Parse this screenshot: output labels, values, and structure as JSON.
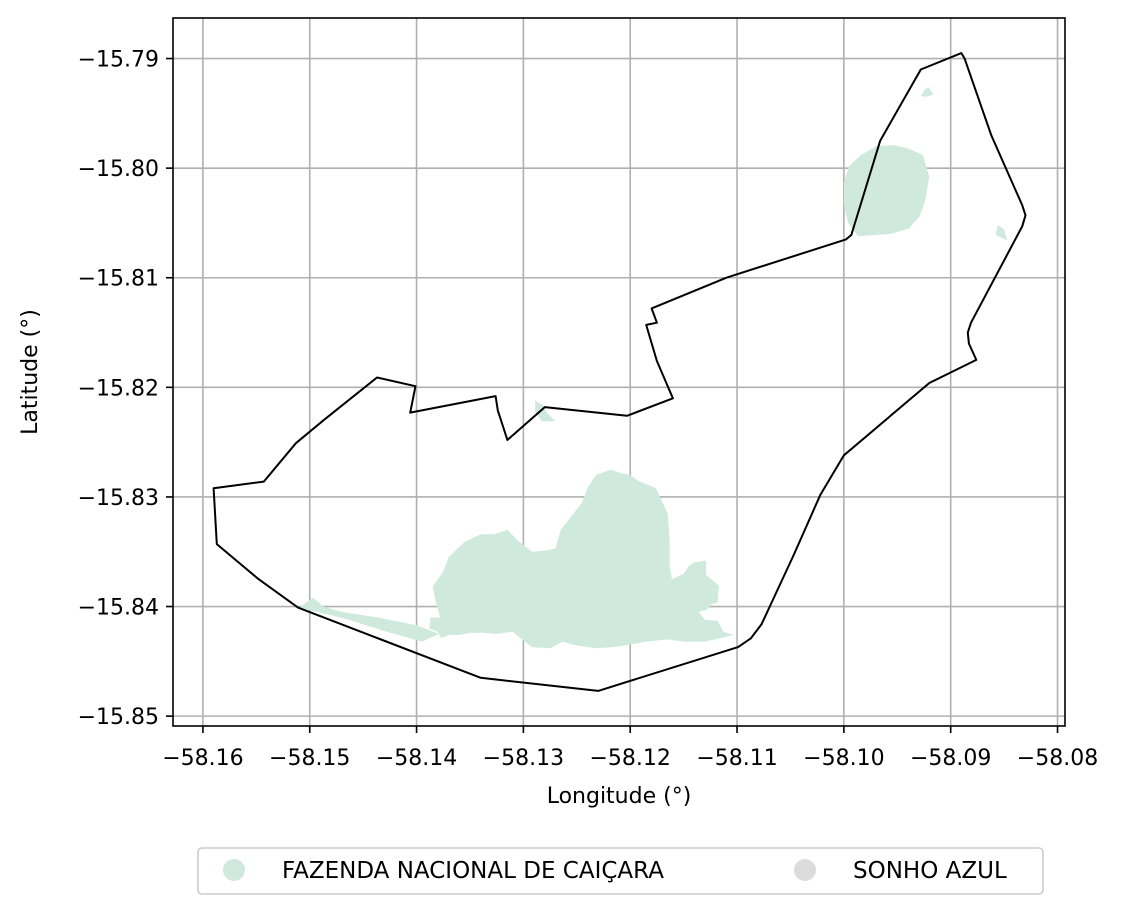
{
  "chart_data": {
    "type": "map",
    "xlabel": "Longitude (°)",
    "ylabel": "Latitude (°)",
    "xlim": [
      -58.1628,
      -58.0793
    ],
    "ylim": [
      -15.8509,
      -15.7863
    ],
    "grid": true,
    "x_ticks": [
      -58.16,
      -58.15,
      -58.14,
      -58.13,
      -58.12,
      -58.11,
      -58.1,
      -58.09,
      -58.08
    ],
    "y_ticks": [
      -15.79,
      -15.8,
      -15.81,
      -15.82,
      -15.83,
      -15.84,
      -15.85
    ],
    "x_tick_labels": [
      "−58.16",
      "−58.15",
      "−58.14",
      "−58.13",
      "−58.12",
      "−58.11",
      "−58.10",
      "−58.09",
      "−58.08"
    ],
    "y_tick_labels": [
      "−15.79",
      "−15.80",
      "−15.81",
      "−15.82",
      "−15.83",
      "−15.84",
      "−15.85"
    ],
    "legend_placement": "bottom-center",
    "boundary": {
      "color": "#000000",
      "coords": [
        [
          -58.159,
          -15.8292
        ],
        [
          -58.1543,
          -15.8286
        ],
        [
          -58.1513,
          -15.8251
        ],
        [
          -58.1487,
          -15.823
        ],
        [
          -58.1437,
          -15.8191
        ],
        [
          -58.1401,
          -15.8199
        ],
        [
          -58.1406,
          -15.8223
        ],
        [
          -58.1326,
          -15.8208
        ],
        [
          -58.1324,
          -15.8221
        ],
        [
          -58.1315,
          -15.8248
        ],
        [
          -58.128,
          -15.8218
        ],
        [
          -58.1203,
          -15.8226
        ],
        [
          -58.116,
          -15.821
        ],
        [
          -58.1175,
          -15.8176
        ],
        [
          -58.1185,
          -15.8143
        ],
        [
          -58.1175,
          -15.8141
        ],
        [
          -58.118,
          -15.8128
        ],
        [
          -58.111,
          -15.81
        ],
        [
          -58.0998,
          -15.8065
        ],
        [
          -58.0993,
          -15.8061
        ],
        [
          -58.0966,
          -15.7975
        ],
        [
          -58.0928,
          -15.791
        ],
        [
          -58.089,
          -15.7895
        ],
        [
          -58.0887,
          -15.79
        ],
        [
          -58.0862,
          -15.797
        ],
        [
          -58.0833,
          -15.8034
        ],
        [
          -58.083,
          -15.8043
        ],
        [
          -58.0833,
          -15.8053
        ],
        [
          -58.0881,
          -15.8141
        ],
        [
          -58.0884,
          -15.815
        ],
        [
          -58.0883,
          -15.816
        ],
        [
          -58.0876,
          -15.8175
        ],
        [
          -58.092,
          -15.8196
        ],
        [
          -58.1,
          -15.8262
        ],
        [
          -58.1022,
          -15.8298
        ],
        [
          -58.1047,
          -15.8353
        ],
        [
          -58.1077,
          -15.8416
        ],
        [
          -58.1087,
          -15.8429
        ],
        [
          -58.1099,
          -15.8437
        ],
        [
          -58.123,
          -15.8477
        ],
        [
          -58.134,
          -15.8465
        ],
        [
          -58.1511,
          -15.8401
        ],
        [
          -58.1548,
          -15.8375
        ],
        [
          -58.1587,
          -15.8343
        ],
        [
          -58.159,
          -15.8292
        ]
      ]
    },
    "series": [
      {
        "name": "FAZENDA NACIONAL DE CAIÇARA",
        "color": "#cfeadd",
        "polygons": [
          [
            [
              -58.1103,
              -15.8426
            ],
            [
              -58.1113,
              -15.8423
            ],
            [
              -58.1118,
              -15.8413
            ],
            [
              -58.113,
              -15.8412
            ],
            [
              -58.1136,
              -15.8405
            ],
            [
              -58.1128,
              -15.8403
            ],
            [
              -58.1124,
              -15.8398
            ],
            [
              -58.1118,
              -15.8396
            ],
            [
              -58.1117,
              -15.8381
            ],
            [
              -58.1129,
              -15.8371
            ],
            [
              -58.1129,
              -15.8358
            ],
            [
              -58.1141,
              -15.836
            ],
            [
              -58.1145,
              -15.8363
            ],
            [
              -58.115,
              -15.837
            ],
            [
              -58.1161,
              -15.8375
            ],
            [
              -58.1163,
              -15.8363
            ],
            [
              -58.1163,
              -15.834
            ],
            [
              -58.1165,
              -15.8315
            ],
            [
              -58.1176,
              -15.8292
            ],
            [
              -58.1193,
              -15.8285
            ],
            [
              -58.12,
              -15.828
            ],
            [
              -58.121,
              -15.8278
            ],
            [
              -58.1218,
              -15.8275
            ],
            [
              -58.1232,
              -15.828
            ],
            [
              -58.124,
              -15.8292
            ],
            [
              -58.1245,
              -15.8305
            ],
            [
              -58.1253,
              -15.8315
            ],
            [
              -58.1265,
              -15.833
            ],
            [
              -58.127,
              -15.8347
            ],
            [
              -58.128,
              -15.8349
            ],
            [
              -58.1292,
              -15.835
            ],
            [
              -58.1305,
              -15.834
            ],
            [
              -58.1315,
              -15.833
            ],
            [
              -58.1327,
              -15.8334
            ],
            [
              -58.134,
              -15.8334
            ],
            [
              -58.1355,
              -15.8341
            ],
            [
              -58.137,
              -15.8355
            ],
            [
              -58.1375,
              -15.8368
            ],
            [
              -58.1385,
              -15.8382
            ],
            [
              -58.1382,
              -15.8396
            ],
            [
              -58.1378,
              -15.841
            ],
            [
              -58.1387,
              -15.841
            ],
            [
              -58.1388,
              -15.842
            ],
            [
              -58.138,
              -15.8423
            ],
            [
              -58.1377,
              -15.8429
            ],
            [
              -58.137,
              -15.8426
            ],
            [
              -58.136,
              -15.8426
            ],
            [
              -58.1349,
              -15.8424
            ],
            [
              -58.134,
              -15.8424
            ],
            [
              -58.1325,
              -15.8425
            ],
            [
              -58.131,
              -15.8423
            ],
            [
              -58.1292,
              -15.8437
            ],
            [
              -58.1275,
              -15.8438
            ],
            [
              -58.1263,
              -15.8432
            ],
            [
              -58.1253,
              -15.8435
            ],
            [
              -58.1232,
              -15.8438
            ],
            [
              -58.1215,
              -15.8437
            ],
            [
              -58.1202,
              -15.8435
            ],
            [
              -58.1185,
              -15.8432
            ],
            [
              -58.1165,
              -15.843
            ],
            [
              -58.115,
              -15.8432
            ],
            [
              -58.113,
              -15.8432
            ],
            [
              -58.1103,
              -15.8426
            ]
          ],
          [
            [
              -58.151,
              -15.8401
            ],
            [
              -58.1497,
              -15.8392
            ],
            [
              -58.1487,
              -15.84
            ],
            [
              -58.147,
              -15.8405
            ],
            [
              -58.1436,
              -15.841
            ],
            [
              -58.14,
              -15.8417
            ],
            [
              -58.1379,
              -15.8425
            ],
            [
              -58.1395,
              -15.8432
            ],
            [
              -58.1431,
              -15.8422
            ],
            [
              -58.1467,
              -15.8411
            ],
            [
              -58.151,
              -15.8401
            ]
          ],
          [
            [
              -58.1289,
              -15.8212
            ],
            [
              -58.1282,
              -15.8216
            ],
            [
              -58.1278,
              -15.8223
            ],
            [
              -58.127,
              -15.8231
            ],
            [
              -58.1283,
              -15.8231
            ],
            [
              -58.1289,
              -15.8222
            ],
            [
              -58.1289,
              -15.8212
            ]
          ],
          [
            [
              -58.0987,
              -15.8062
            ],
            [
              -58.0956,
              -15.806
            ],
            [
              -58.0939,
              -15.8055
            ],
            [
              -58.0929,
              -15.8044
            ],
            [
              -58.0924,
              -15.803
            ],
            [
              -58.092,
              -15.8008
            ],
            [
              -58.0926,
              -15.7988
            ],
            [
              -58.094,
              -15.7982
            ],
            [
              -58.0953,
              -15.7979
            ],
            [
              -58.097,
              -15.798
            ],
            [
              -58.0984,
              -15.7988
            ],
            [
              -58.0995,
              -15.7998
            ],
            [
              -58.1,
              -15.8013
            ],
            [
              -58.1,
              -15.8034
            ],
            [
              -58.0996,
              -15.805
            ],
            [
              -58.0987,
              -15.8062
            ]
          ],
          [
            [
              -58.0856,
              -15.8052
            ],
            [
              -58.085,
              -15.8056
            ],
            [
              -58.0847,
              -15.8066
            ],
            [
              -58.0858,
              -15.8061
            ],
            [
              -58.0856,
              -15.8052
            ]
          ],
          [
            [
              -58.0921,
              -15.7926
            ],
            [
              -58.0916,
              -15.7933
            ],
            [
              -58.0924,
              -15.7935
            ],
            [
              -58.0928,
              -15.7934
            ],
            [
              -58.0924,
              -15.7928
            ],
            [
              -58.0921,
              -15.7926
            ]
          ]
        ]
      },
      {
        "name": "SONHO AZUL",
        "color": "#dcdcdc",
        "polygons": []
      }
    ]
  }
}
